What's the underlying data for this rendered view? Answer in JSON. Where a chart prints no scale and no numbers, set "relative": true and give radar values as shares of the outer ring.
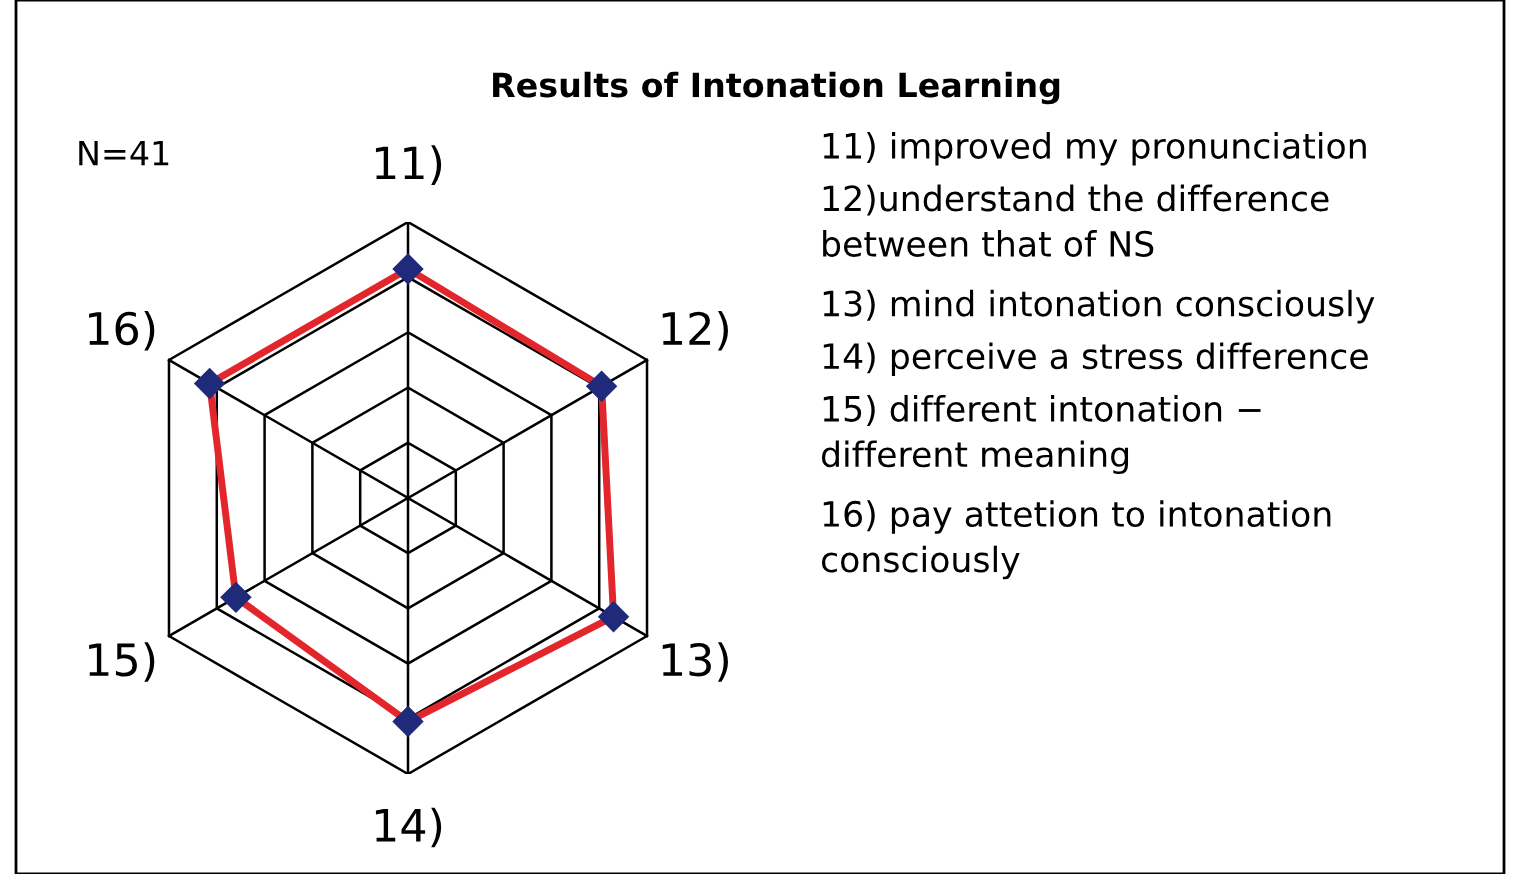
{
  "chart_data": {
    "type": "radar",
    "title": "Results of Intonation Learning",
    "relative": true,
    "categories": [
      "11)",
      "12)",
      "13)",
      "14)",
      "15)",
      "16)"
    ],
    "series": [
      {
        "color": "#e3262b",
        "values": [
          0.83,
          0.81,
          0.86,
          0.81,
          0.72,
          0.83
        ]
      }
    ],
    "marker": "diamond",
    "grid": true,
    "annotations": [
      "N=41",
      "11) improved my pronunciation",
      "12)understand the difference\nbetween that of NS",
      "13) mind intonation consciously",
      "14) perceive a stress difference",
      "15) different intonation −\ndifferent meaning",
      "16) pay attetion to intonation\nconsciously"
    ]
  }
}
